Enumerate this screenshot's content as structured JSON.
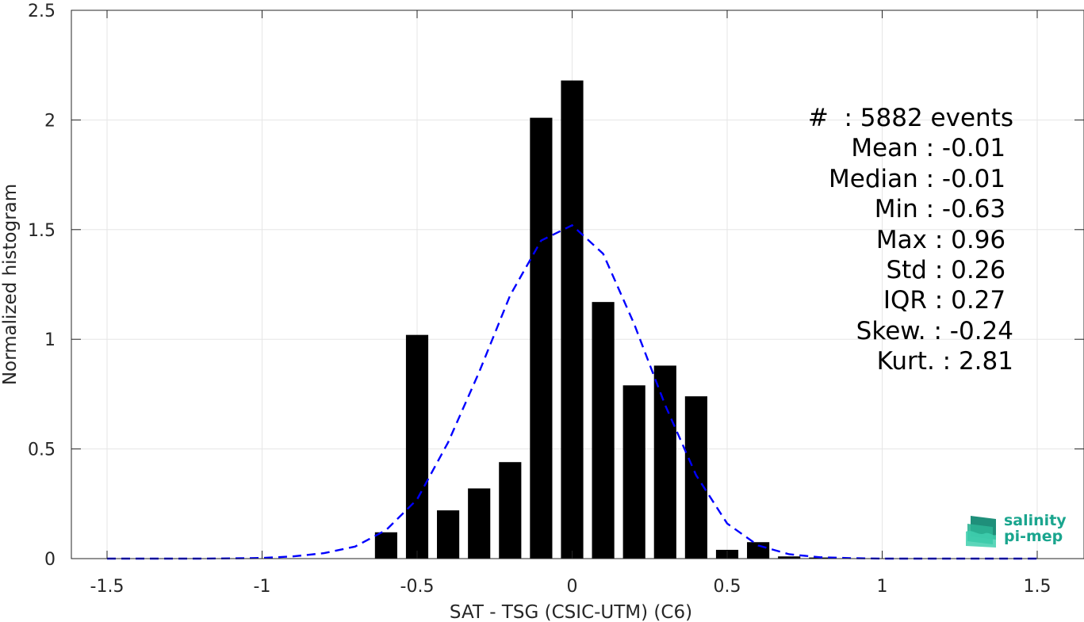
{
  "chart_data": {
    "type": "bar",
    "xlabel": "SAT - TSG (CSIC-UTM) (C6)",
    "ylabel": "Normalized histogram",
    "xlim": [
      -1.5,
      1.5
    ],
    "ylim": [
      0,
      2.5
    ],
    "xticks": [
      "-1.5",
      "-1",
      "-0.5",
      "0",
      "0.5",
      "1",
      "1.5"
    ],
    "yticks": [
      "0",
      "0.5",
      "1",
      "1.5",
      "2",
      "2.5"
    ],
    "grid": true,
    "bar_color": "#000000",
    "bars": {
      "x": [
        -0.6,
        -0.5,
        -0.4,
        -0.3,
        -0.2,
        -0.1,
        0.0,
        0.1,
        0.2,
        0.3,
        0.4,
        0.5,
        0.6,
        0.7,
        0.8
      ],
      "values": [
        0.12,
        1.02,
        0.22,
        0.32,
        0.44,
        2.01,
        2.18,
        1.17,
        0.79,
        0.88,
        0.74,
        0.04,
        0.075,
        0.01,
        0.005
      ]
    },
    "fit_curve": {
      "style": "dashed",
      "color": "#0000ff",
      "x": [
        -1.5,
        -1.4,
        -1.3,
        -1.2,
        -1.1,
        -1.0,
        -0.9,
        -0.8,
        -0.7,
        -0.6,
        -0.5,
        -0.4,
        -0.3,
        -0.2,
        -0.1,
        0.0,
        0.1,
        0.2,
        0.3,
        0.4,
        0.5,
        0.6,
        0.7,
        0.8,
        0.9,
        1.0,
        1.1,
        1.2,
        1.3,
        1.4,
        1.5
      ],
      "y": [
        0.0,
        0.0,
        0.0,
        0.0,
        0.001,
        0.003,
        0.01,
        0.025,
        0.055,
        0.13,
        0.27,
        0.53,
        0.85,
        1.2,
        1.45,
        1.52,
        1.39,
        1.07,
        0.7,
        0.38,
        0.16,
        0.06,
        0.02,
        0.006,
        0.002,
        0.0,
        0.0,
        0.0,
        0.0,
        0.0,
        0.0
      ]
    },
    "stats": [
      "#  : 5882 events",
      "Mean : -0.01 ",
      "Median : -0.01 ",
      "Min : -0.63 ",
      "Max : 0.96 ",
      "Std : 0.26 ",
      "IQR : 0.27 ",
      "Skew. : -0.24",
      "Kurt. : 2.81"
    ]
  },
  "logo": {
    "line1": "salinity",
    "line2": "pi-mep",
    "color": "#1aa58e"
  }
}
